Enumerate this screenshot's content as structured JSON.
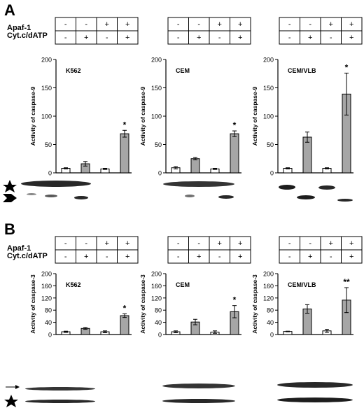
{
  "panel_labels": [
    "A",
    "B"
  ],
  "row_labels": [
    "Apaf-1",
    "Cyt.c/dATP"
  ],
  "conditions": {
    "apaf": [
      "-",
      "-",
      "+",
      "+"
    ],
    "cytc": [
      "-",
      "+",
      "-",
      "+"
    ]
  },
  "chart_data": [
    {
      "type": "bar",
      "panel": "A",
      "title": "K562",
      "ylabel": "Activity of caspase-9",
      "ylim": [
        0,
        200
      ],
      "yticks": [
        "0",
        "50",
        "100",
        "150",
        "200"
      ],
      "values": [
        8,
        16,
        7,
        69
      ],
      "errors": [
        1,
        4,
        1,
        6
      ],
      "fills": [
        "white",
        "gray",
        "white",
        "gray"
      ],
      "annotation": {
        "bar": 3,
        "text": "*"
      }
    },
    {
      "type": "bar",
      "panel": "A",
      "title": "CEM",
      "ylabel": "Activity of caspase-9",
      "ylim": [
        0,
        200
      ],
      "yticks": [
        "0",
        "50",
        "100",
        "150",
        "200"
      ],
      "values": [
        9,
        25,
        7,
        69
      ],
      "errors": [
        2,
        2,
        1,
        5
      ],
      "fills": [
        "white",
        "gray",
        "white",
        "gray"
      ],
      "annotation": {
        "bar": 3,
        "text": "*"
      }
    },
    {
      "type": "bar",
      "panel": "A",
      "title": "CEM/VLB",
      "ylabel": "Activity of caspase-9",
      "ylim": [
        0,
        200
      ],
      "yticks": [
        "0",
        "50",
        "100",
        "150",
        "200"
      ],
      "values": [
        8,
        63,
        8,
        139
      ],
      "errors": [
        1,
        9,
        1,
        37
      ],
      "fills": [
        "white",
        "gray",
        "white",
        "gray"
      ],
      "annotation": {
        "bar": 3,
        "text": "*"
      }
    },
    {
      "type": "bar",
      "panel": "B",
      "title": "K562",
      "ylabel": "Activity of caspase-3",
      "ylim": [
        0,
        200
      ],
      "yticks": [
        "0",
        "40",
        "80",
        "120",
        "160",
        "200"
      ],
      "values": [
        9,
        20,
        9,
        62
      ],
      "errors": [
        2,
        3,
        3,
        6
      ],
      "fills": [
        "white",
        "gray",
        "white",
        "gray"
      ],
      "annotation": {
        "bar": 3,
        "text": "*"
      }
    },
    {
      "type": "bar",
      "panel": "B",
      "title": "CEM",
      "ylabel": "Activity of caspase-3",
      "ylim": [
        0,
        200
      ],
      "yticks": [
        "0",
        "40",
        "80",
        "120",
        "160",
        "200"
      ],
      "values": [
        9,
        41,
        8,
        75
      ],
      "errors": [
        3,
        9,
        4,
        20
      ],
      "fills": [
        "white",
        "gray",
        "white",
        "gray"
      ],
      "annotation": {
        "bar": 3,
        "text": "*"
      }
    },
    {
      "type": "bar",
      "panel": "B",
      "title": "CEM/VLB",
      "ylabel": "Activity of caspase-3",
      "ylim": [
        0,
        200
      ],
      "yticks": [
        "0",
        "40",
        "80",
        "120",
        "160",
        "200"
      ],
      "values": [
        10,
        84,
        12,
        113
      ],
      "errors": [
        1,
        14,
        5,
        41
      ],
      "fills": [
        "white",
        "gray",
        "white",
        "gray"
      ],
      "annotation": {
        "bar": 3,
        "text": "**"
      }
    }
  ]
}
